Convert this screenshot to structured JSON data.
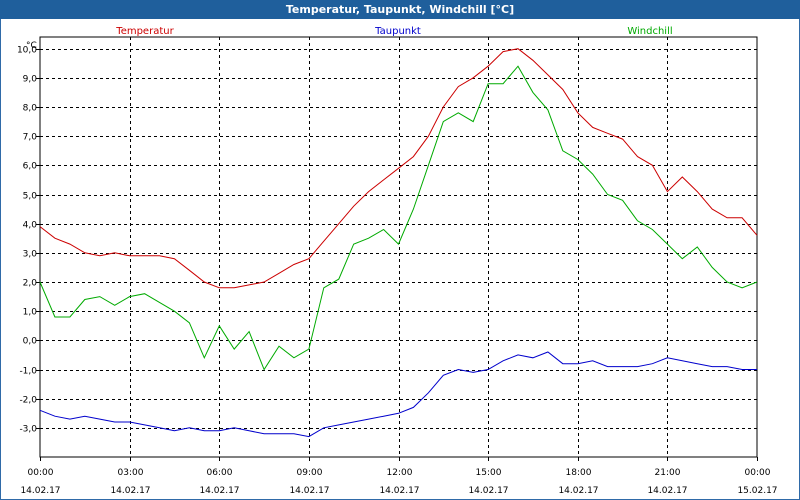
{
  "window": {
    "title": "Temperatur, Taupunkt, Windchill [°C]"
  },
  "chart_data": {
    "type": "line",
    "title": "Temperatur, Taupunkt, Windchill [°C]",
    "ylabel": "°C",
    "ylim": [
      -4.0,
      10.4
    ],
    "y_ticks": [
      "10,0",
      "9,0",
      "8,0",
      "7,0",
      "6,0",
      "5,0",
      "4,0",
      "3,0",
      "2,0",
      "1,0",
      "0,0",
      "-1,0",
      "-2,0",
      "-3,0"
    ],
    "y_tick_values": [
      10,
      9,
      8,
      7,
      6,
      5,
      4,
      3,
      2,
      1,
      0,
      -1,
      -2,
      -3
    ],
    "xlim": [
      0,
      24
    ],
    "x_ticks": [
      {
        "time": "00:00",
        "date": "14.02.17"
      },
      {
        "time": "03:00",
        "date": "14.02.17"
      },
      {
        "time": "06:00",
        "date": "14.02.17"
      },
      {
        "time": "09:00",
        "date": "14.02.17"
      },
      {
        "time": "12:00",
        "date": "14.02.17"
      },
      {
        "time": "15:00",
        "date": "14.02.17"
      },
      {
        "time": "18:00",
        "date": "14.02.17"
      },
      {
        "time": "21:00",
        "date": "14.02.17"
      },
      {
        "time": "00:00",
        "date": "15.02.17"
      }
    ],
    "x_tick_values": [
      0,
      3,
      6,
      9,
      12,
      15,
      18,
      21,
      24
    ],
    "grid": true,
    "legend_placement": "top",
    "series": [
      {
        "name": "Temperatur",
        "color": "#cc0000",
        "x": [
          0,
          0.5,
          1,
          1.5,
          2,
          2.5,
          3,
          3.5,
          4,
          4.5,
          5,
          5.5,
          6,
          6.5,
          7,
          7.5,
          8,
          8.5,
          9,
          9.5,
          10,
          10.5,
          11,
          11.5,
          12,
          12.5,
          13,
          13.5,
          14,
          14.5,
          15,
          15.5,
          16,
          16.5,
          17,
          17.5,
          18,
          18.5,
          19,
          19.5,
          20,
          20.5,
          21,
          21.5,
          22,
          22.5,
          23,
          23.5,
          24
        ],
        "y": [
          3.9,
          3.5,
          3.3,
          3.0,
          2.9,
          3.0,
          2.9,
          2.9,
          2.9,
          2.8,
          2.4,
          2.0,
          1.8,
          1.8,
          1.9,
          2.0,
          2.3,
          2.6,
          2.8,
          3.4,
          4.0,
          4.6,
          5.1,
          5.5,
          5.9,
          6.3,
          7.0,
          8.0,
          8.7,
          9.0,
          9.4,
          9.9,
          10.0,
          9.6,
          9.1,
          8.6,
          7.8,
          7.3,
          7.1,
          6.9,
          6.3,
          6.0,
          5.1,
          5.6,
          5.1,
          4.5,
          4.2,
          4.2,
          3.6
        ]
      },
      {
        "name": "Taupunkt",
        "color": "#0000cc",
        "x": [
          0,
          0.5,
          1,
          1.5,
          2,
          2.5,
          3,
          3.5,
          4,
          4.5,
          5,
          5.5,
          6,
          6.5,
          7,
          7.5,
          8,
          8.5,
          9,
          9.5,
          10,
          10.5,
          11,
          11.5,
          12,
          12.5,
          13,
          13.5,
          14,
          14.5,
          15,
          15.5,
          16,
          16.5,
          17,
          17.5,
          18,
          18.5,
          19,
          19.5,
          20,
          20.5,
          21,
          21.5,
          22,
          22.5,
          23,
          23.5,
          24
        ],
        "y": [
          -2.4,
          -2.6,
          -2.7,
          -2.6,
          -2.7,
          -2.8,
          -2.8,
          -2.9,
          -3.0,
          -3.1,
          -3.0,
          -3.1,
          -3.1,
          -3.0,
          -3.1,
          -3.2,
          -3.2,
          -3.2,
          -3.3,
          -3.0,
          -2.9,
          -2.8,
          -2.7,
          -2.6,
          -2.5,
          -2.3,
          -1.8,
          -1.2,
          -1.0,
          -1.1,
          -1.0,
          -0.7,
          -0.5,
          -0.6,
          -0.4,
          -0.8,
          -0.8,
          -0.7,
          -0.9,
          -0.9,
          -0.9,
          -0.8,
          -0.6,
          -0.7,
          -0.8,
          -0.9,
          -0.9,
          -1.0,
          -1.0
        ]
      },
      {
        "name": "Windchill",
        "color": "#00aa00",
        "x": [
          0,
          0.5,
          1,
          1.5,
          2,
          2.5,
          3,
          3.5,
          4,
          4.5,
          5,
          5.5,
          6,
          6.5,
          7,
          7.5,
          8,
          8.5,
          9,
          9.5,
          10,
          10.5,
          11,
          11.5,
          12,
          12.5,
          13,
          13.5,
          14,
          14.5,
          15,
          15.5,
          16,
          16.5,
          17,
          17.5,
          18,
          18.5,
          19,
          19.5,
          20,
          20.5,
          21,
          21.5,
          22,
          22.5,
          23,
          23.5,
          24
        ],
        "y": [
          2.0,
          0.8,
          0.8,
          1.4,
          1.5,
          1.2,
          1.5,
          1.6,
          1.3,
          1.0,
          0.6,
          -0.6,
          0.5,
          -0.3,
          0.3,
          -1.0,
          -0.2,
          -0.6,
          -0.3,
          1.8,
          2.1,
          3.3,
          3.5,
          3.8,
          3.3,
          4.5,
          6.0,
          7.5,
          7.8,
          7.5,
          8.8,
          8.8,
          9.4,
          8.5,
          7.9,
          6.5,
          6.2,
          5.7,
          5.0,
          4.8,
          4.1,
          3.8,
          3.3,
          2.8,
          3.2,
          2.5,
          2.0,
          1.8,
          2.0
        ]
      }
    ]
  }
}
